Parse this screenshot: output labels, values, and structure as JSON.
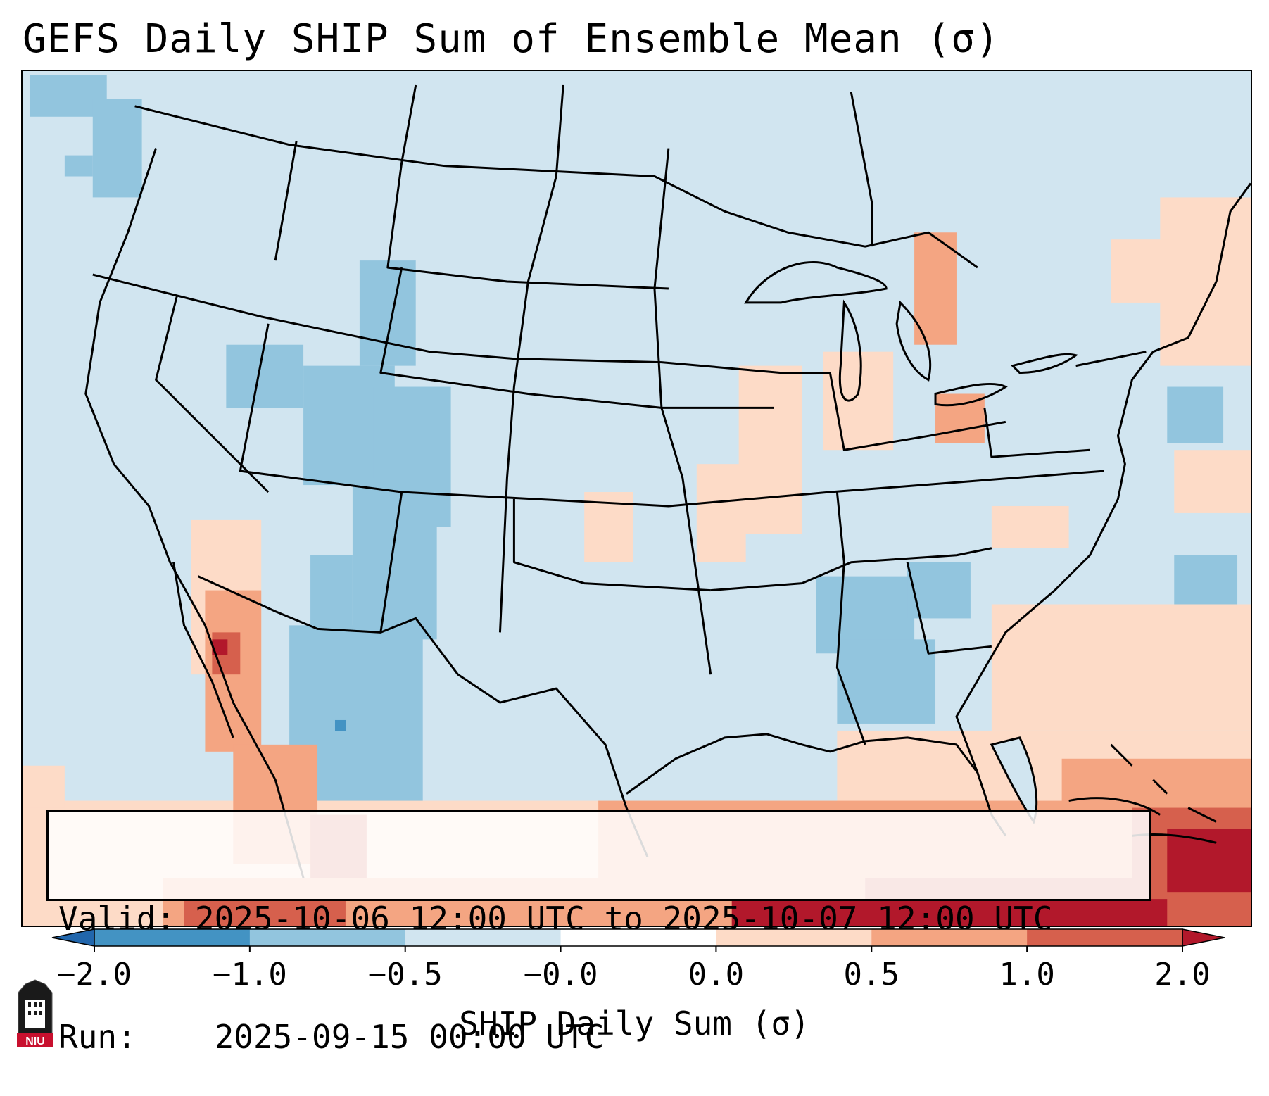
{
  "title": "GEFS Daily SHIP Sum of Ensemble Mean (σ)",
  "info": {
    "valid_label": "Valid:",
    "valid_value": "2025-10-06 12:00 UTC to 2025-10-07 12:00 UTC",
    "run_label": "Run:",
    "run_value": "2025-09-15 00:00 UTC"
  },
  "colorbar": {
    "label": "SHIP Daily Sum (σ)",
    "ticks": [
      "−2.0",
      "−1.0",
      "−0.5",
      "−0.0",
      "0.0",
      "0.5",
      "1.0",
      "2.0"
    ],
    "colors": [
      "#2166ac",
      "#4393c3",
      "#92c5de",
      "#d1e5f0",
      "#ffffff",
      "#fddbc7",
      "#f4a582",
      "#d6604d",
      "#b2182b"
    ]
  },
  "colors": {
    "background_cat": "#d1e5f0",
    "neg_mid": "#92c5de",
    "neg_strong": "#4393c3",
    "pos_low": "#fddbc7",
    "pos_mid": "#f4a582",
    "pos_high": "#d6604d",
    "pos_max": "#b2182b"
  },
  "logo": {
    "text": "NIU"
  }
}
